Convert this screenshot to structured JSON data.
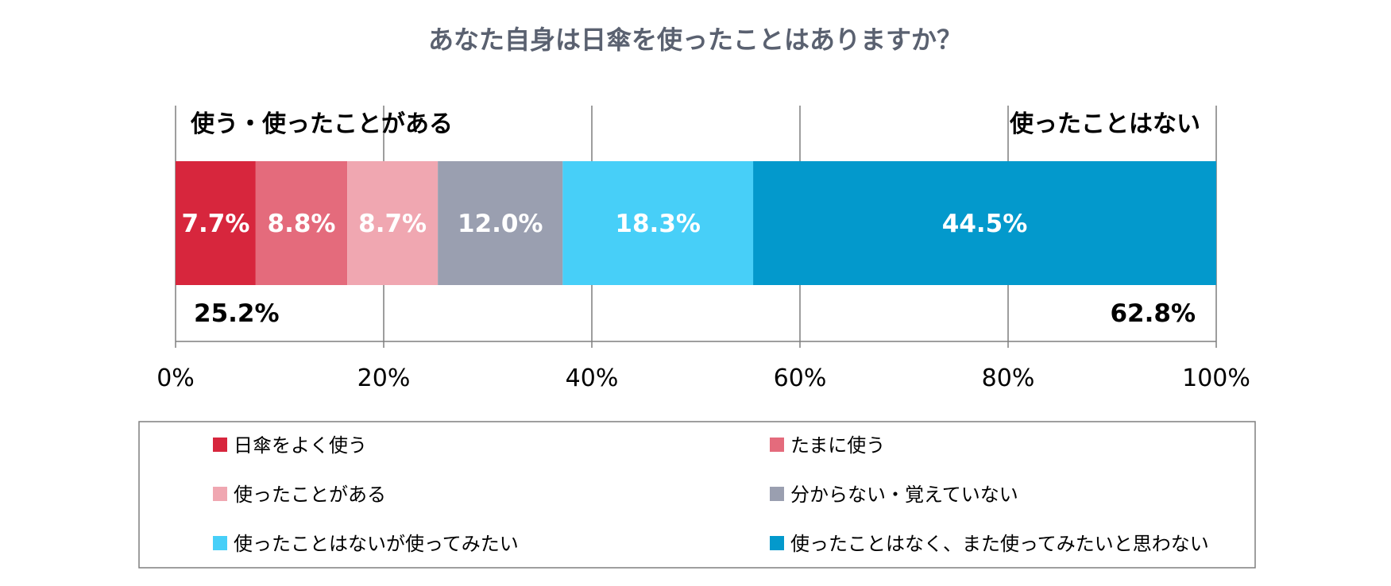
{
  "chart_data": {
    "type": "bar",
    "orientation": "horizontal-stacked-100",
    "title": "あなた自身は日傘を使ったことはありますか？",
    "series": [
      {
        "name": "日傘をよく使う",
        "value": 7.7,
        "label": "7.7%",
        "color": "#d7263d"
      },
      {
        "name": "たまに使う",
        "value": 8.8,
        "label": "8.8%",
        "color": "#e46b7c"
      },
      {
        "name": "使ったことがある",
        "value": 8.7,
        "label": "8.7%",
        "color": "#f0a7b1"
      },
      {
        "name": "分からない・覚えていない",
        "value": 12.0,
        "label": "12.0%",
        "color": "#9a9fb0"
      },
      {
        "name": "使ったことはないが使ってみたい",
        "value": 18.3,
        "label": "18.3%",
        "color": "#47cff8"
      },
      {
        "name": "使ったことはなく、また使ってみたいと思わない",
        "value": 44.5,
        "label": "44.5%",
        "color": "#0399cc"
      }
    ],
    "xlim": [
      0,
      100
    ],
    "x_ticks": [
      {
        "value": 0,
        "label": "0%"
      },
      {
        "value": 20,
        "label": "20%"
      },
      {
        "value": 40,
        "label": "40%"
      },
      {
        "value": 60,
        "label": "60%"
      },
      {
        "value": 80,
        "label": "80%"
      },
      {
        "value": 100,
        "label": "100%"
      }
    ],
    "groups": {
      "left": {
        "label": "使う・使ったことがある",
        "total": "25.2%"
      },
      "right": {
        "label": "使ったことはない",
        "total": "62.8%"
      }
    },
    "gridlines": true,
    "legend_position": "bottom"
  }
}
